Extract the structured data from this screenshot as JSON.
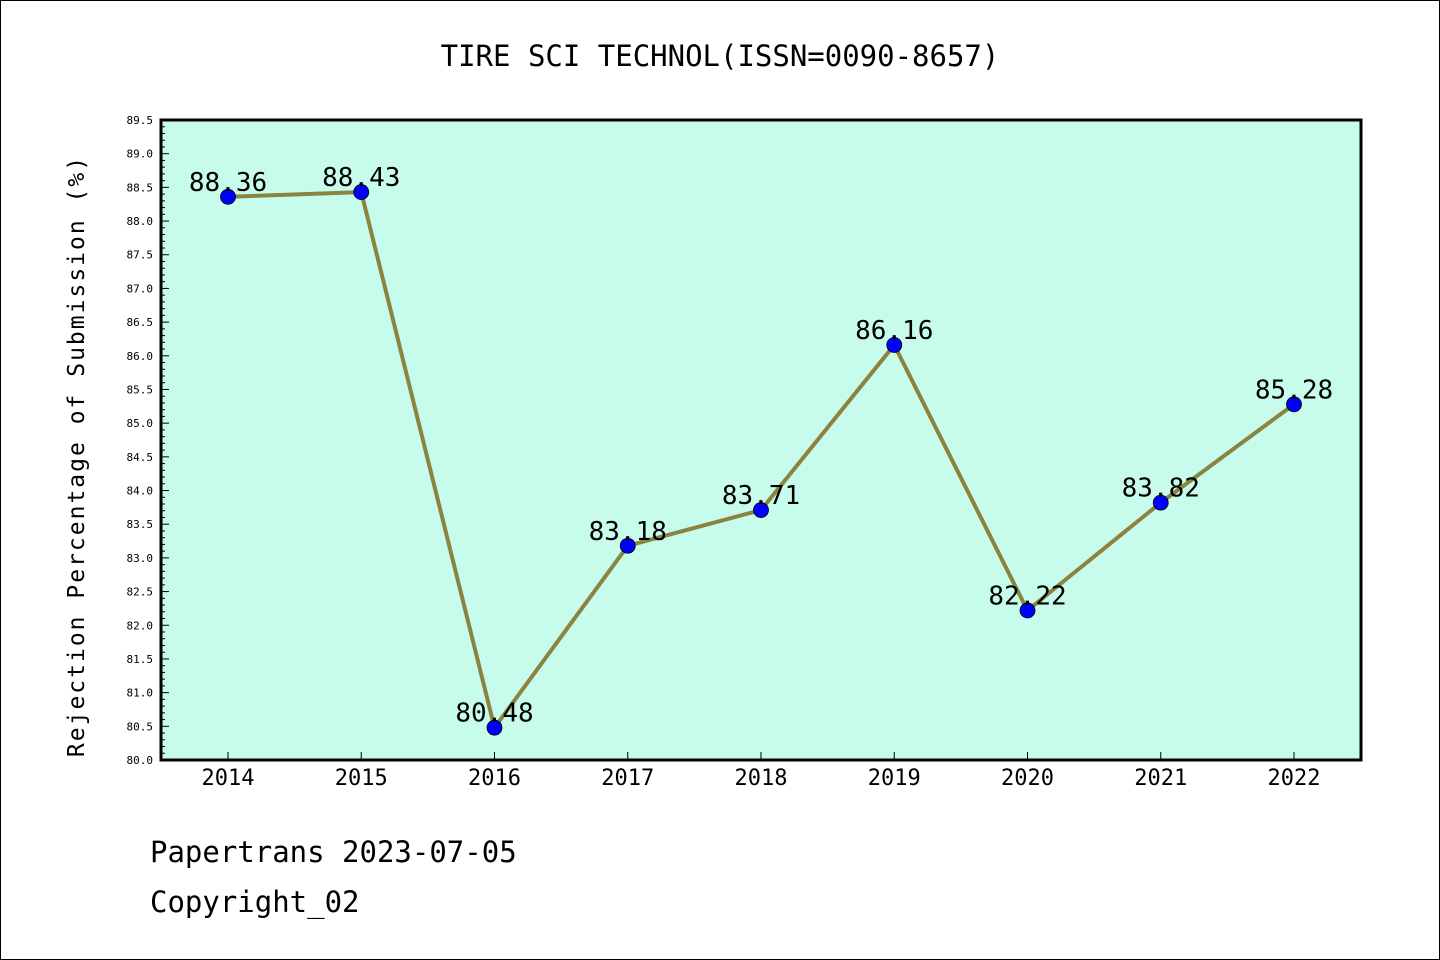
{
  "chart_data": {
    "type": "line",
    "title": "TIRE SCI TECHNOL(ISSN=0090-8657)",
    "xlabel": "",
    "ylabel": "Rejection Percentage of Submission (%)",
    "categories": [
      "2014",
      "2015",
      "2016",
      "2017",
      "2018",
      "2019",
      "2020",
      "2021",
      "2022"
    ],
    "series": [
      {
        "values": [
          88.36,
          88.43,
          80.48,
          83.18,
          83.71,
          86.16,
          82.22,
          83.82,
          85.28
        ],
        "data_labels": [
          "88.36",
          "88.43",
          "80.48",
          "83.18",
          "83.71",
          "86.16",
          "82.22",
          "83.82",
          "85.28"
        ]
      }
    ],
    "ylim": [
      80.0,
      89.5
    ],
    "yticks": [
      "80.0",
      "80.5",
      "81.0",
      "81.5",
      "82.0",
      "82.5",
      "83.0",
      "83.5",
      "84.0",
      "84.5",
      "85.0",
      "85.5",
      "86.0",
      "86.5",
      "87.0",
      "87.5",
      "88.0",
      "88.5",
      "89.0",
      "89.5"
    ],
    "grid": false,
    "colors": {
      "plot_background": "#c7fcec",
      "line": "#8b8440",
      "marker": "#0000ff"
    }
  },
  "footer": {
    "line1": "Papertrans 2023-07-05",
    "line2": "Copyright_02"
  }
}
